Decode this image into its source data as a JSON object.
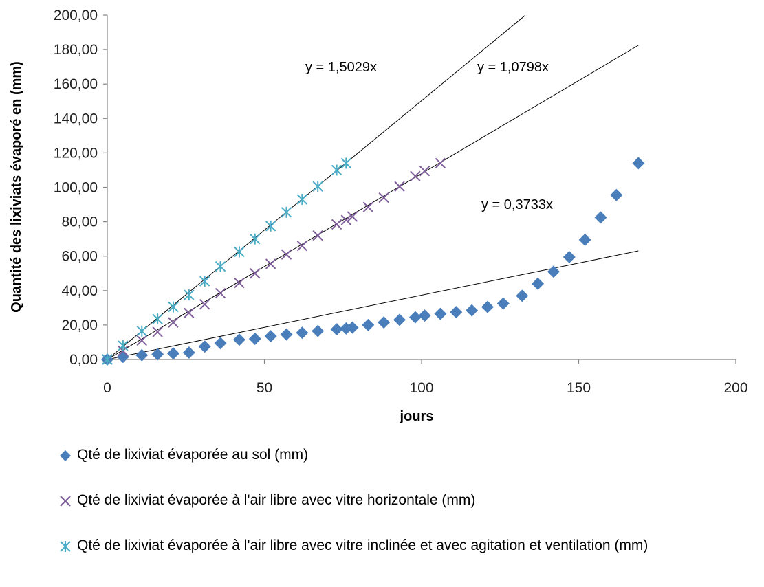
{
  "chart_data": {
    "type": "scatter",
    "xlabel": "jours",
    "ylabel": "Quantité des lixiviats évaporé en (mm)",
    "xlim": [
      0,
      200
    ],
    "ylim": [
      0,
      200
    ],
    "xticks": [
      "0",
      "50",
      "100",
      "150",
      "200"
    ],
    "yticks": [
      "0,00",
      "20,00",
      "40,00",
      "60,00",
      "80,00",
      "100,00",
      "120,00",
      "140,00",
      "160,00",
      "180,00",
      "200,00"
    ],
    "grid": false,
    "legend_position": "bottom",
    "series": [
      {
        "name": "Qté de lixiviat évaporée au sol (mm)",
        "marker": "diamond",
        "color": "#4a7ebb",
        "trendline": {
          "slope": 0.3733,
          "label": "y = 0,3733x",
          "x_end": 169
        },
        "x": [
          0,
          5,
          11,
          16,
          21,
          26,
          31,
          36,
          42,
          47,
          52,
          57,
          62,
          67,
          73,
          76,
          78,
          83,
          88,
          93,
          98,
          101,
          106,
          111,
          116,
          121,
          126,
          132,
          137,
          142,
          147,
          152,
          157,
          162,
          169
        ],
        "y": [
          0,
          1.5,
          2.5,
          3,
          3.5,
          4,
          7.5,
          9.5,
          11.5,
          12,
          13.5,
          14.5,
          15.5,
          16.5,
          17.5,
          18,
          18.5,
          20,
          21.5,
          23,
          24.5,
          25.5,
          26.5,
          27.5,
          28.5,
          30.5,
          32.5,
          37,
          44,
          51,
          59.5,
          69.5,
          82.5,
          95.5,
          114
        ]
      },
      {
        "name": "Qté de lixiviat évaporée à l'air libre avec vitre horizontale (mm)",
        "marker": "x",
        "color": "#7f5f99",
        "trendline": {
          "slope": 1.0798,
          "label": "y = 1,0798x",
          "x_end": 169
        },
        "x": [
          0,
          5,
          11,
          16,
          21,
          26,
          31,
          36,
          42,
          47,
          52,
          57,
          62,
          67,
          73,
          76,
          78,
          83,
          88,
          93,
          98,
          101,
          106
        ],
        "y": [
          0,
          5,
          11,
          16,
          21.5,
          27,
          32,
          38.5,
          44.5,
          50,
          55.5,
          61,
          66,
          72,
          78.5,
          81,
          83,
          88.5,
          94,
          100.5,
          106.5,
          109.5,
          114
        ]
      },
      {
        "name": "Qté de lixiviat évaporée à l'air libre avec vitre inclinée et avec agitation et ventilation (mm)",
        "marker": "asterisk",
        "color": "#4bacc6",
        "trendline": {
          "slope": 1.5029,
          "label": "y = 1,5029x",
          "x_end": 133
        },
        "x": [
          0,
          5,
          11,
          16,
          21,
          26,
          31,
          36,
          42,
          47,
          52,
          57,
          62,
          67,
          73,
          76
        ],
        "y": [
          0,
          8,
          16.5,
          23.5,
          30.5,
          37.5,
          45.5,
          54,
          62.5,
          70,
          77.5,
          85.5,
          93,
          100.5,
          110,
          114
        ]
      }
    ]
  }
}
